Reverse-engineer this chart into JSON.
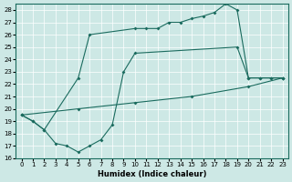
{
  "xlabel": "Humidex (Indice chaleur)",
  "xlim": [
    -0.5,
    23.5
  ],
  "ylim": [
    16,
    28.5
  ],
  "yticks": [
    16,
    17,
    18,
    19,
    20,
    21,
    22,
    23,
    24,
    25,
    26,
    27,
    28
  ],
  "xticks": [
    0,
    1,
    2,
    3,
    4,
    5,
    6,
    7,
    8,
    9,
    10,
    11,
    12,
    13,
    14,
    15,
    16,
    17,
    18,
    19,
    20,
    21,
    22,
    23
  ],
  "bg_color": "#cde8e5",
  "line_color": "#1a6b5e",
  "line1_x": [
    0,
    5,
    10,
    15,
    20,
    23
  ],
  "line1_y": [
    19.5,
    20.0,
    20.5,
    21.0,
    21.8,
    22.5
  ],
  "line2_x": [
    0,
    1,
    2,
    3,
    4,
    5,
    6,
    7,
    8,
    9,
    10,
    19,
    20,
    21,
    22,
    23
  ],
  "line2_y": [
    19.5,
    19.0,
    18.3,
    17.2,
    17.0,
    16.5,
    17.0,
    17.5,
    18.7,
    23.0,
    24.5,
    25.0,
    22.5,
    22.5,
    22.5,
    22.5
  ],
  "line3_x": [
    0,
    1,
    2,
    5,
    6,
    10,
    11,
    12,
    13,
    14,
    15,
    16,
    17,
    18,
    19,
    20,
    21,
    22,
    23
  ],
  "line3_y": [
    19.5,
    19.0,
    18.3,
    22.5,
    26.0,
    26.5,
    26.5,
    26.5,
    27.0,
    27.0,
    27.3,
    27.5,
    27.8,
    28.5,
    28.0,
    22.5,
    22.5,
    22.5,
    22.5
  ]
}
